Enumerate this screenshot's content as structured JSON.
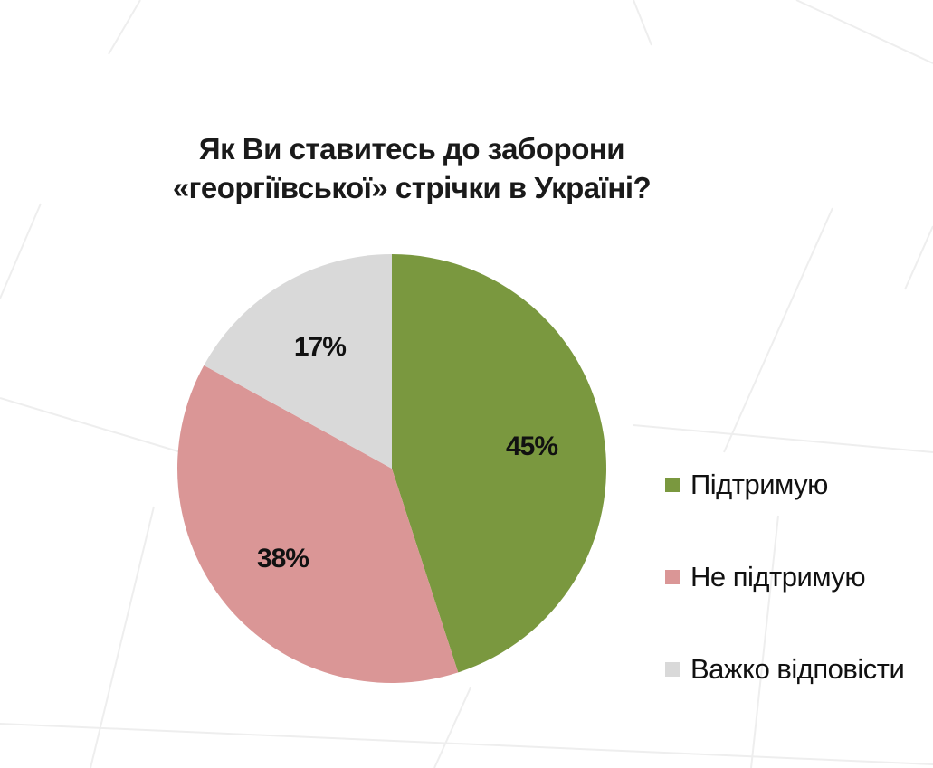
{
  "chart_data": {
    "type": "pie",
    "title": [
      "Як Ви ставитесь до заборони",
      "«георгіївської» стрічки в Україні?"
    ],
    "slices": [
      {
        "name": "Підтримую",
        "value": 45,
        "label": "45%",
        "color": "#7a983f"
      },
      {
        "name": "Не підтримую",
        "value": 38,
        "label": "38%",
        "color": "#da9696"
      },
      {
        "name": "Важко відповісти",
        "value": 17,
        "label": "17%",
        "color": "#d9d9d9"
      }
    ],
    "legend_position": "right"
  }
}
